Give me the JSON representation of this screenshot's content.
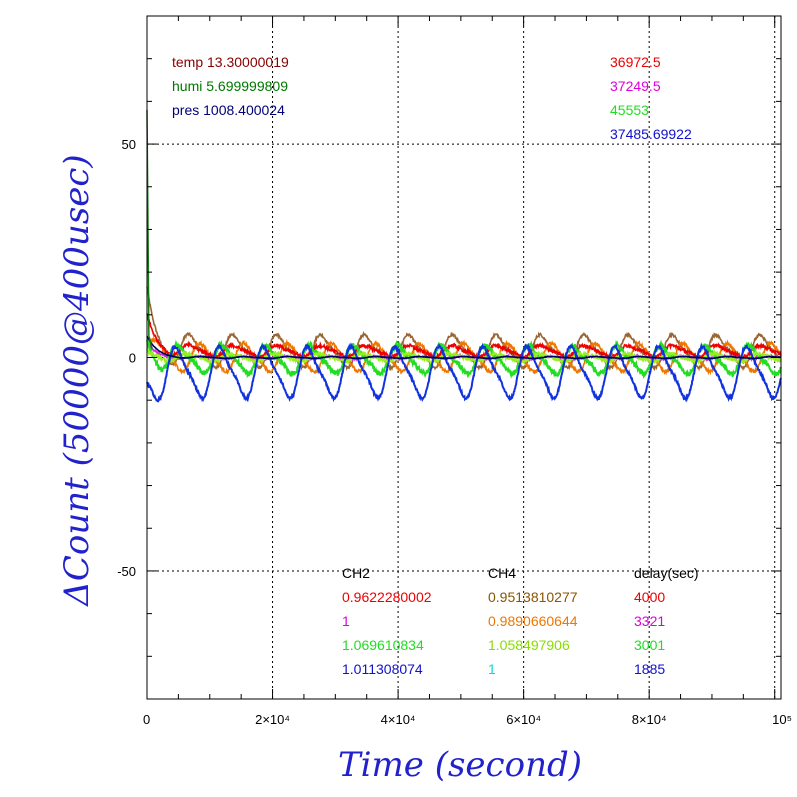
{
  "chart_data": {
    "type": "line",
    "title": "",
    "xlabel": "Time (second)",
    "ylabel": "ΔCount (50000@400usec)",
    "xlim": [
      0,
      101000
    ],
    "ylim": [
      -80,
      80
    ],
    "grid": true,
    "x_ticks": [
      {
        "value": 0,
        "label": "0"
      },
      {
        "value": 20000,
        "label": "2×10⁴"
      },
      {
        "value": 40000,
        "label": "4×10⁴"
      },
      {
        "value": 60000,
        "label": "6×10⁴"
      },
      {
        "value": 80000,
        "label": "8×10⁴"
      },
      {
        "value": 100000,
        "label": "10⁵"
      }
    ],
    "y_ticks": [
      {
        "value": 50,
        "label": "50"
      },
      {
        "value": 0,
        "label": "0"
      },
      {
        "value": -50,
        "label": "-50"
      }
    ],
    "period_seconds": 7000,
    "series": [
      {
        "color": "#996633",
        "offset": 1.5,
        "amplitude": 3.5,
        "phase": 0.25,
        "noise": 0.3,
        "start": 13
      },
      {
        "color": "#ee7700",
        "offset": 0.0,
        "amplitude": 3.0,
        "phase": 0.0,
        "noise": 0.4,
        "start": 2
      },
      {
        "color": "#ee0000",
        "offset": 1.5,
        "amplitude": 1.2,
        "phase": 0.25,
        "noise": 0.4,
        "start": 9
      },
      {
        "color": "#cc33cc",
        "offset": 0.0,
        "amplitude": 0.3,
        "phase": 0.1,
        "noise": 0.2,
        "start": 3
      },
      {
        "color": "#22dd22",
        "offset": -0.5,
        "amplitude": 3.0,
        "phase": 0.5,
        "noise": 0.6,
        "start": 4
      },
      {
        "color": "#99ee22",
        "offset": 0.0,
        "amplitude": 0.8,
        "phase": 0.3,
        "noise": 0.4,
        "start": 1
      },
      {
        "color": "#1133dd",
        "offset": -3.5,
        "amplitude": 5.5,
        "phase": 0.55,
        "noise": 0.3,
        "start": -5
      },
      {
        "color": "#000066",
        "offset": 0.0,
        "amplitude": 0.2,
        "phase": 0.0,
        "noise": 0.05,
        "start": 5
      }
    ]
  },
  "annotations": {
    "env": [
      {
        "text": "temp 13.30000019",
        "color": "#880000"
      },
      {
        "text": "humi 5.699999809",
        "color": "#007700"
      },
      {
        "text": "pres 1008.400024",
        "color": "#000077"
      }
    ],
    "counts": [
      {
        "text": "36972.5",
        "color": "#ee0000"
      },
      {
        "text": "37249.5",
        "color": "#dd00dd"
      },
      {
        "text": "45553",
        "color": "#22dd22"
      },
      {
        "text": "37485.69922",
        "color": "#1111cc"
      }
    ],
    "table": {
      "headers": [
        "CH2",
        "CH4",
        "delay(sec)"
      ],
      "rows": [
        {
          "ch2": "0.9622280002",
          "ch2_color": "#ee0000",
          "ch4": "0.9513810277",
          "ch4_color": "#885500",
          "delay": "4000",
          "delay_color": "#ee0000"
        },
        {
          "ch2": "1",
          "ch2_color": "#dd00dd",
          "ch4": "0.9890660644",
          "ch4_color": "#ee7700",
          "delay": "3321",
          "delay_color": "#dd00dd"
        },
        {
          "ch2": "1.069610834",
          "ch2_color": "#22dd22",
          "ch4": "1.058497906",
          "ch4_color": "#88dd00",
          "delay": "3001",
          "delay_color": "#22dd22"
        },
        {
          "ch2": "1.011308074",
          "ch2_color": "#1111cc",
          "ch4": "1",
          "ch4_color": "#00dddd",
          "delay": "1885",
          "delay_color": "#1111cc"
        }
      ]
    }
  }
}
